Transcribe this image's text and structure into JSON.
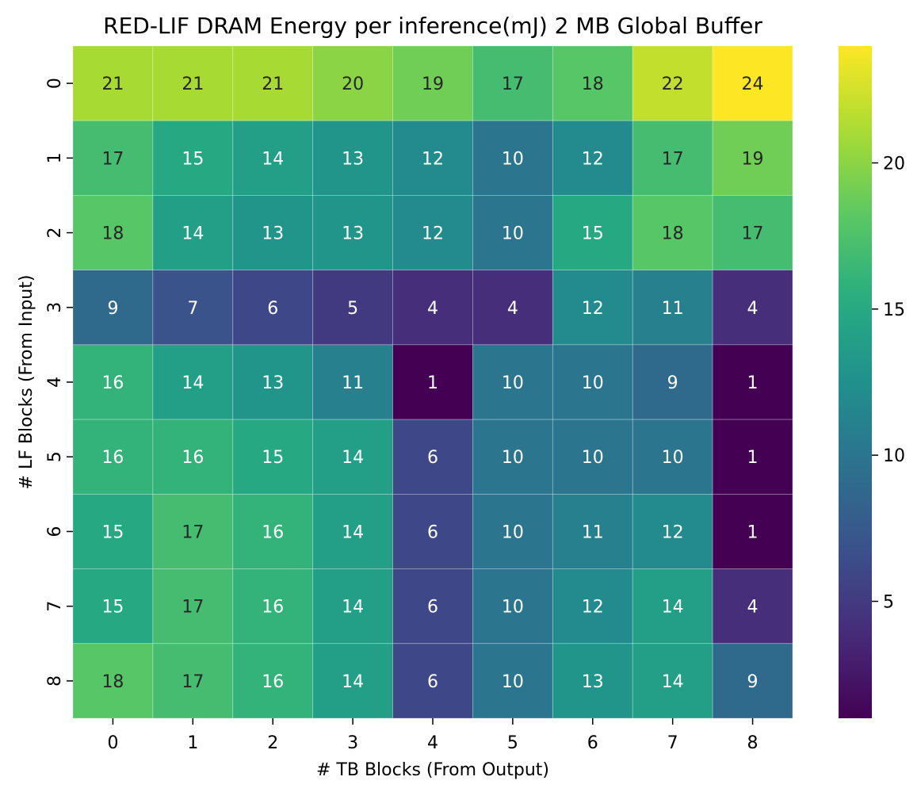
{
  "chart_data": {
    "type": "heatmap",
    "title": "RED-LIF DRAM Energy per inference(mJ) 2 MB Global Buffer",
    "xlabel": "# TB Blocks (From Output)",
    "ylabel": "# LF Blocks (From Input)",
    "x_categories": [
      "0",
      "1",
      "2",
      "3",
      "4",
      "5",
      "6",
      "7",
      "8"
    ],
    "y_categories": [
      "0",
      "1",
      "2",
      "3",
      "4",
      "5",
      "6",
      "7",
      "8"
    ],
    "values": [
      [
        21,
        21,
        21,
        20,
        19,
        17,
        18,
        22,
        24
      ],
      [
        17,
        15,
        14,
        13,
        12,
        10,
        12,
        17,
        19
      ],
      [
        18,
        14,
        13,
        13,
        12,
        10,
        15,
        18,
        17
      ],
      [
        9,
        7,
        6,
        5,
        4,
        4,
        12,
        11,
        4
      ],
      [
        16,
        14,
        13,
        11,
        1,
        10,
        10,
        9,
        1
      ],
      [
        16,
        16,
        15,
        14,
        6,
        10,
        10,
        10,
        1
      ],
      [
        15,
        17,
        16,
        14,
        6,
        10,
        11,
        12,
        1
      ],
      [
        15,
        17,
        16,
        14,
        6,
        10,
        12,
        14,
        4
      ],
      [
        18,
        17,
        16,
        14,
        6,
        10,
        13,
        14,
        9
      ]
    ],
    "value_range": [
      1,
      24
    ],
    "colormap": "viridis",
    "colorbar_ticks": [
      "5",
      "10",
      "15",
      "20"
    ],
    "colorbar_tick_values": [
      5,
      10,
      15,
      20
    ],
    "annotation_dark_color": "#262626",
    "annotation_light_color": "#ffffff"
  }
}
